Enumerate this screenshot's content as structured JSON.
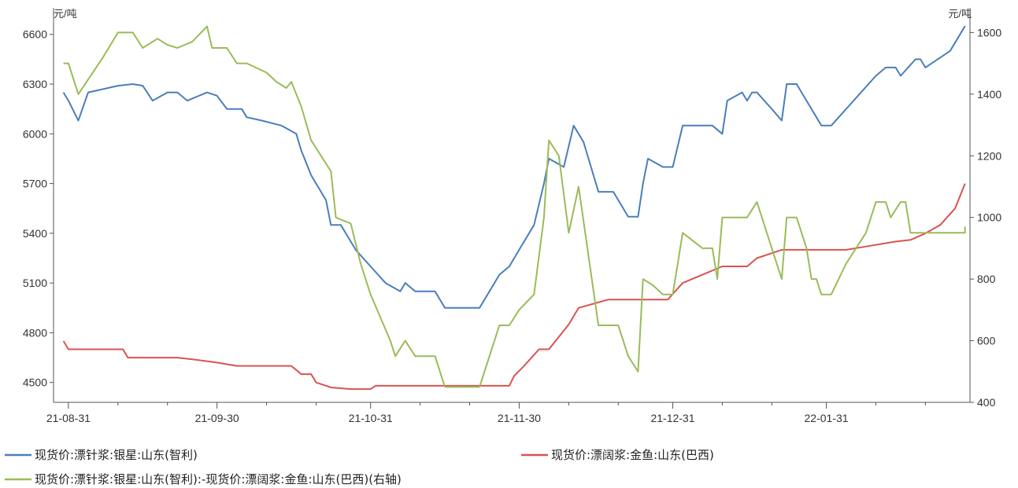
{
  "chart_data": {
    "type": "line",
    "left_unit": "元/吨",
    "right_unit": "元/吨",
    "x_ticks": [
      "21-08-31",
      "21-09-30",
      "21-10-31",
      "21-11-30",
      "21-12-31",
      "22-01-31"
    ],
    "y_left": {
      "min": 4380,
      "max": 6760,
      "ticks": [
        4500,
        4800,
        5100,
        5400,
        5700,
        6000,
        6300,
        6600
      ]
    },
    "y_right": {
      "min": 400,
      "max": 1680,
      "ticks": [
        400,
        600,
        800,
        1000,
        1200,
        1400,
        1600
      ]
    },
    "grid": false,
    "legend_position": "bottom",
    "series": [
      {
        "name": "现货价:漂针浆:银星:山东(智利)",
        "axis": "left",
        "color": "#4a7ebb",
        "points": [
          [
            "2021-08-30",
            6250
          ],
          [
            "2021-08-31",
            6200
          ],
          [
            "2021-09-02",
            6080
          ],
          [
            "2021-09-04",
            6250
          ],
          [
            "2021-09-07",
            6270
          ],
          [
            "2021-09-10",
            6290
          ],
          [
            "2021-09-13",
            6300
          ],
          [
            "2021-09-15",
            6290
          ],
          [
            "2021-09-17",
            6200
          ],
          [
            "2021-09-20",
            6250
          ],
          [
            "2021-09-22",
            6250
          ],
          [
            "2021-09-24",
            6200
          ],
          [
            "2021-09-28",
            6250
          ],
          [
            "2021-09-30",
            6230
          ],
          [
            "2021-10-02",
            6150
          ],
          [
            "2021-10-05",
            6150
          ],
          [
            "2021-10-06",
            6100
          ],
          [
            "2021-10-09",
            6080
          ],
          [
            "2021-10-13",
            6050
          ],
          [
            "2021-10-16",
            6000
          ],
          [
            "2021-10-17",
            5900
          ],
          [
            "2021-10-19",
            5750
          ],
          [
            "2021-10-22",
            5600
          ],
          [
            "2021-10-23",
            5450
          ],
          [
            "2021-10-25",
            5450
          ],
          [
            "2021-10-28",
            5300
          ],
          [
            "2021-10-31",
            5200
          ],
          [
            "2021-11-03",
            5100
          ],
          [
            "2021-11-06",
            5050
          ],
          [
            "2021-11-07",
            5100
          ],
          [
            "2021-11-09",
            5050
          ],
          [
            "2021-11-13",
            5050
          ],
          [
            "2021-11-15",
            4950
          ],
          [
            "2021-11-18",
            4950
          ],
          [
            "2021-11-22",
            4950
          ],
          [
            "2021-11-24",
            5050
          ],
          [
            "2021-11-26",
            5150
          ],
          [
            "2021-11-28",
            5200
          ],
          [
            "2021-11-30",
            5300
          ],
          [
            "2021-12-03",
            5450
          ],
          [
            "2021-12-05",
            5700
          ],
          [
            "2021-12-06",
            5850
          ],
          [
            "2021-12-09",
            5800
          ],
          [
            "2021-12-11",
            6050
          ],
          [
            "2021-12-13",
            5950
          ],
          [
            "2021-12-16",
            5650
          ],
          [
            "2021-12-19",
            5650
          ],
          [
            "2021-12-22",
            5500
          ],
          [
            "2021-12-24",
            5500
          ],
          [
            "2021-12-25",
            5700
          ],
          [
            "2021-12-26",
            5850
          ],
          [
            "2021-12-29",
            5800
          ],
          [
            "2021-12-31",
            5800
          ],
          [
            "2022-01-02",
            6050
          ],
          [
            "2022-01-05",
            6050
          ],
          [
            "2022-01-08",
            6050
          ],
          [
            "2022-01-10",
            6000
          ],
          [
            "2022-01-11",
            6200
          ],
          [
            "2022-01-14",
            6250
          ],
          [
            "2022-01-15",
            6200
          ],
          [
            "2022-01-16",
            6250
          ],
          [
            "2022-01-17",
            6250
          ],
          [
            "2022-01-20",
            6150
          ],
          [
            "2022-01-22",
            6080
          ],
          [
            "2022-01-23",
            6300
          ],
          [
            "2022-01-25",
            6300
          ],
          [
            "2022-01-27",
            6200
          ],
          [
            "2022-01-28",
            6150
          ],
          [
            "2022-01-29",
            6100
          ],
          [
            "2022-01-30",
            6050
          ],
          [
            "2022-02-01",
            6050
          ],
          [
            "2022-02-07",
            6250
          ],
          [
            "2022-02-10",
            6350
          ],
          [
            "2022-02-12",
            6400
          ],
          [
            "2022-02-14",
            6400
          ],
          [
            "2022-02-15",
            6350
          ],
          [
            "2022-02-18",
            6450
          ],
          [
            "2022-02-19",
            6450
          ],
          [
            "2022-02-20",
            6400
          ],
          [
            "2022-02-25",
            6500
          ],
          [
            "2022-02-28",
            6650
          ]
        ]
      },
      {
        "name": "现货价:漂阔浆:金鱼:山东(巴西)",
        "axis": "left",
        "color": "#d9534f",
        "points": [
          [
            "2021-08-30",
            4750
          ],
          [
            "2021-08-31",
            4700
          ],
          [
            "2021-09-03",
            4700
          ],
          [
            "2021-09-11",
            4700
          ],
          [
            "2021-09-12",
            4650
          ],
          [
            "2021-09-22",
            4650
          ],
          [
            "2021-09-25",
            4640
          ],
          [
            "2021-09-30",
            4620
          ],
          [
            "2021-10-04",
            4600
          ],
          [
            "2021-10-15",
            4600
          ],
          [
            "2021-10-17",
            4550
          ],
          [
            "2021-10-19",
            4550
          ],
          [
            "2021-10-20",
            4500
          ],
          [
            "2021-10-23",
            4470
          ],
          [
            "2021-10-27",
            4460
          ],
          [
            "2021-10-31",
            4460
          ],
          [
            "2021-11-01",
            4480
          ],
          [
            "2021-11-21",
            4480
          ],
          [
            "2021-11-24",
            4480
          ],
          [
            "2021-11-28",
            4480
          ],
          [
            "2021-11-29",
            4540
          ],
          [
            "2021-12-01",
            4600
          ],
          [
            "2021-12-04",
            4700
          ],
          [
            "2021-12-06",
            4700
          ],
          [
            "2021-12-10",
            4850
          ],
          [
            "2021-12-12",
            4950
          ],
          [
            "2021-12-18",
            5000
          ],
          [
            "2021-12-30",
            5000
          ],
          [
            "2022-01-02",
            5100
          ],
          [
            "2022-01-06",
            5150
          ],
          [
            "2022-01-10",
            5200
          ],
          [
            "2022-01-15",
            5200
          ],
          [
            "2022-01-17",
            5250
          ],
          [
            "2022-01-22",
            5300
          ],
          [
            "2022-01-31",
            5300
          ],
          [
            "2022-02-04",
            5300
          ],
          [
            "2022-02-08",
            5320
          ],
          [
            "2022-02-14",
            5350
          ],
          [
            "2022-02-17",
            5360
          ],
          [
            "2022-02-20",
            5400
          ],
          [
            "2022-02-23",
            5450
          ],
          [
            "2022-02-26",
            5550
          ],
          [
            "2022-02-28",
            5700
          ]
        ]
      },
      {
        "name": "现货价:漂针浆:银星:山东(智利):-现货价:漂阔浆:金鱼:山东(巴西)(右轴)",
        "axis": "right",
        "color": "#9bbb59",
        "points": [
          [
            "2021-08-30",
            1500
          ],
          [
            "2021-08-31",
            1500
          ],
          [
            "2021-09-02",
            1400
          ],
          [
            "2021-09-07",
            1520
          ],
          [
            "2021-09-10",
            1600
          ],
          [
            "2021-09-13",
            1600
          ],
          [
            "2021-09-15",
            1550
          ],
          [
            "2021-09-18",
            1580
          ],
          [
            "2021-09-20",
            1560
          ],
          [
            "2021-09-22",
            1550
          ],
          [
            "2021-09-25",
            1570
          ],
          [
            "2021-09-28",
            1620
          ],
          [
            "2021-09-29",
            1550
          ],
          [
            "2021-10-02",
            1550
          ],
          [
            "2021-10-04",
            1500
          ],
          [
            "2021-10-06",
            1500
          ],
          [
            "2021-10-10",
            1470
          ],
          [
            "2021-10-12",
            1440
          ],
          [
            "2021-10-14",
            1420
          ],
          [
            "2021-10-15",
            1440
          ],
          [
            "2021-10-17",
            1360
          ],
          [
            "2021-10-19",
            1250
          ],
          [
            "2021-10-23",
            1150
          ],
          [
            "2021-10-24",
            1000
          ],
          [
            "2021-10-27",
            980
          ],
          [
            "2021-10-29",
            850
          ],
          [
            "2021-10-31",
            750
          ],
          [
            "2021-11-04",
            600
          ],
          [
            "2021-11-05",
            550
          ],
          [
            "2021-11-07",
            600
          ],
          [
            "2021-11-09",
            550
          ],
          [
            "2021-11-13",
            550
          ],
          [
            "2021-11-15",
            450
          ],
          [
            "2021-11-22",
            450
          ],
          [
            "2021-11-24",
            550
          ],
          [
            "2021-11-26",
            650
          ],
          [
            "2021-11-28",
            650
          ],
          [
            "2021-11-30",
            700
          ],
          [
            "2021-12-03",
            750
          ],
          [
            "2021-12-05",
            1000
          ],
          [
            "2021-12-06",
            1250
          ],
          [
            "2021-12-08",
            1200
          ],
          [
            "2021-12-10",
            950
          ],
          [
            "2021-12-12",
            1100
          ],
          [
            "2021-12-16",
            650
          ],
          [
            "2021-12-20",
            650
          ],
          [
            "2021-12-22",
            550
          ],
          [
            "2021-12-24",
            500
          ],
          [
            "2021-12-25",
            800
          ],
          [
            "2021-12-27",
            780
          ],
          [
            "2021-12-29",
            750
          ],
          [
            "2021-12-31",
            750
          ],
          [
            "2022-01-02",
            950
          ],
          [
            "2022-01-06",
            900
          ],
          [
            "2022-01-08",
            900
          ],
          [
            "2022-01-09",
            800
          ],
          [
            "2022-01-10",
            1000
          ],
          [
            "2022-01-15",
            1000
          ],
          [
            "2022-01-17",
            1050
          ],
          [
            "2022-01-20",
            900
          ],
          [
            "2022-01-22",
            800
          ],
          [
            "2022-01-23",
            1000
          ],
          [
            "2022-01-25",
            1000
          ],
          [
            "2022-01-27",
            900
          ],
          [
            "2022-01-28",
            800
          ],
          [
            "2022-01-29",
            800
          ],
          [
            "2022-01-30",
            750
          ],
          [
            "2022-02-01",
            750
          ],
          [
            "2022-02-04",
            850
          ],
          [
            "2022-02-08",
            950
          ],
          [
            "2022-02-10",
            1050
          ],
          [
            "2022-02-12",
            1050
          ],
          [
            "2022-02-13",
            1000
          ],
          [
            "2022-02-15",
            1050
          ],
          [
            "2022-02-16",
            1050
          ],
          [
            "2022-02-17",
            950
          ],
          [
            "2022-02-28",
            950
          ],
          [
            "2022-02-28",
            970
          ]
        ]
      }
    ]
  },
  "legend": {
    "items": [
      {
        "label": "现货价:漂针浆:银星:山东(智利)",
        "color": "#4a7ebb"
      },
      {
        "label": "现货价:漂阔浆:金鱼:山东(巴西)",
        "color": "#d9534f"
      },
      {
        "label": "现货价:漂针浆:银星:山东(智利):-现货价:漂阔浆:金鱼:山东(巴西)(右轴)",
        "color": "#9bbb59"
      }
    ]
  }
}
